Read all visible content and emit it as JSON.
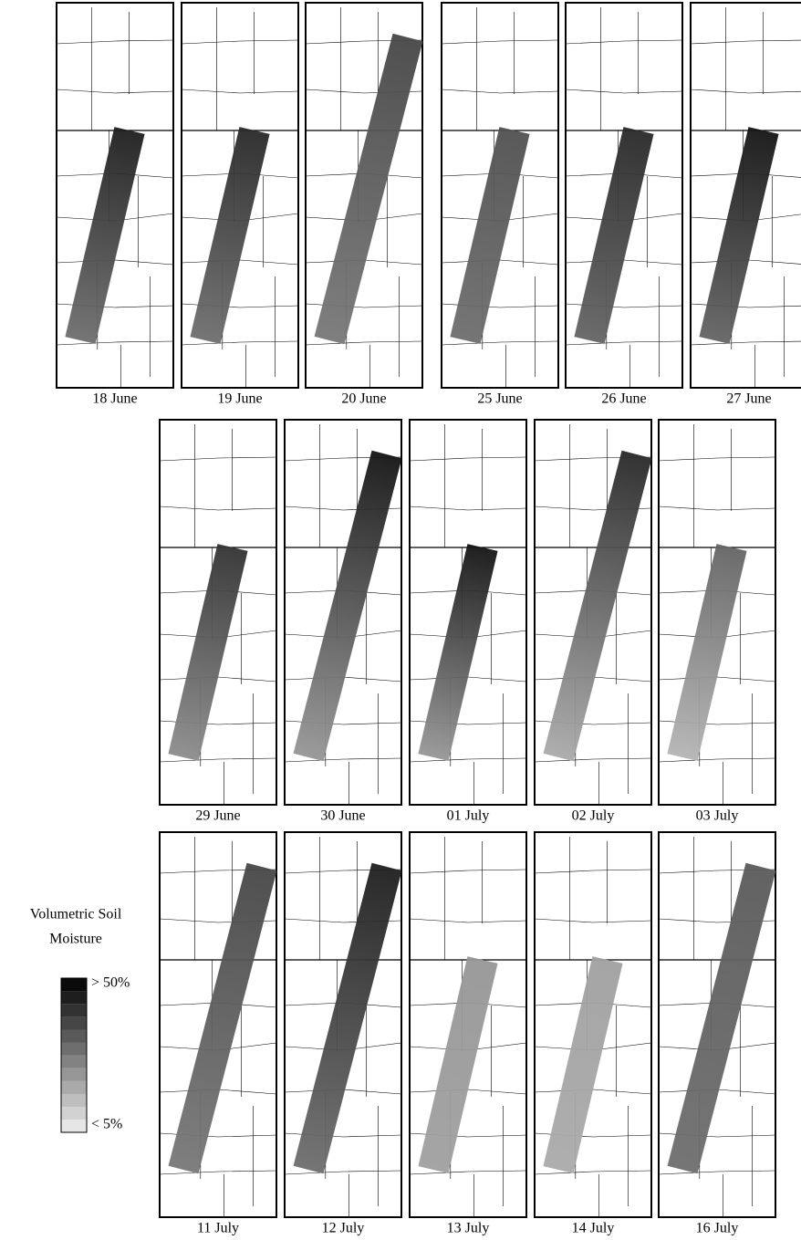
{
  "panels": [
    {
      "label": "18 June"
    },
    {
      "label": "19 June"
    },
    {
      "label": "20 June"
    },
    {
      "label": "25 June"
    },
    {
      "label": "26 June"
    },
    {
      "label": "27 June"
    },
    {
      "label": "29 June"
    },
    {
      "label": "30  June"
    },
    {
      "label": "01 July"
    },
    {
      "label": "02 July"
    },
    {
      "label": "03 July"
    },
    {
      "label": "11 July"
    },
    {
      "label": "12  July"
    },
    {
      "label": "13 July"
    },
    {
      "label": "14  July"
    },
    {
      "label": "16 July"
    }
  ],
  "legend": {
    "title": [
      "Volumetric Soil",
      "Moisture"
    ],
    "max_label": "> 50%",
    "min_label": "< 5%"
  }
}
